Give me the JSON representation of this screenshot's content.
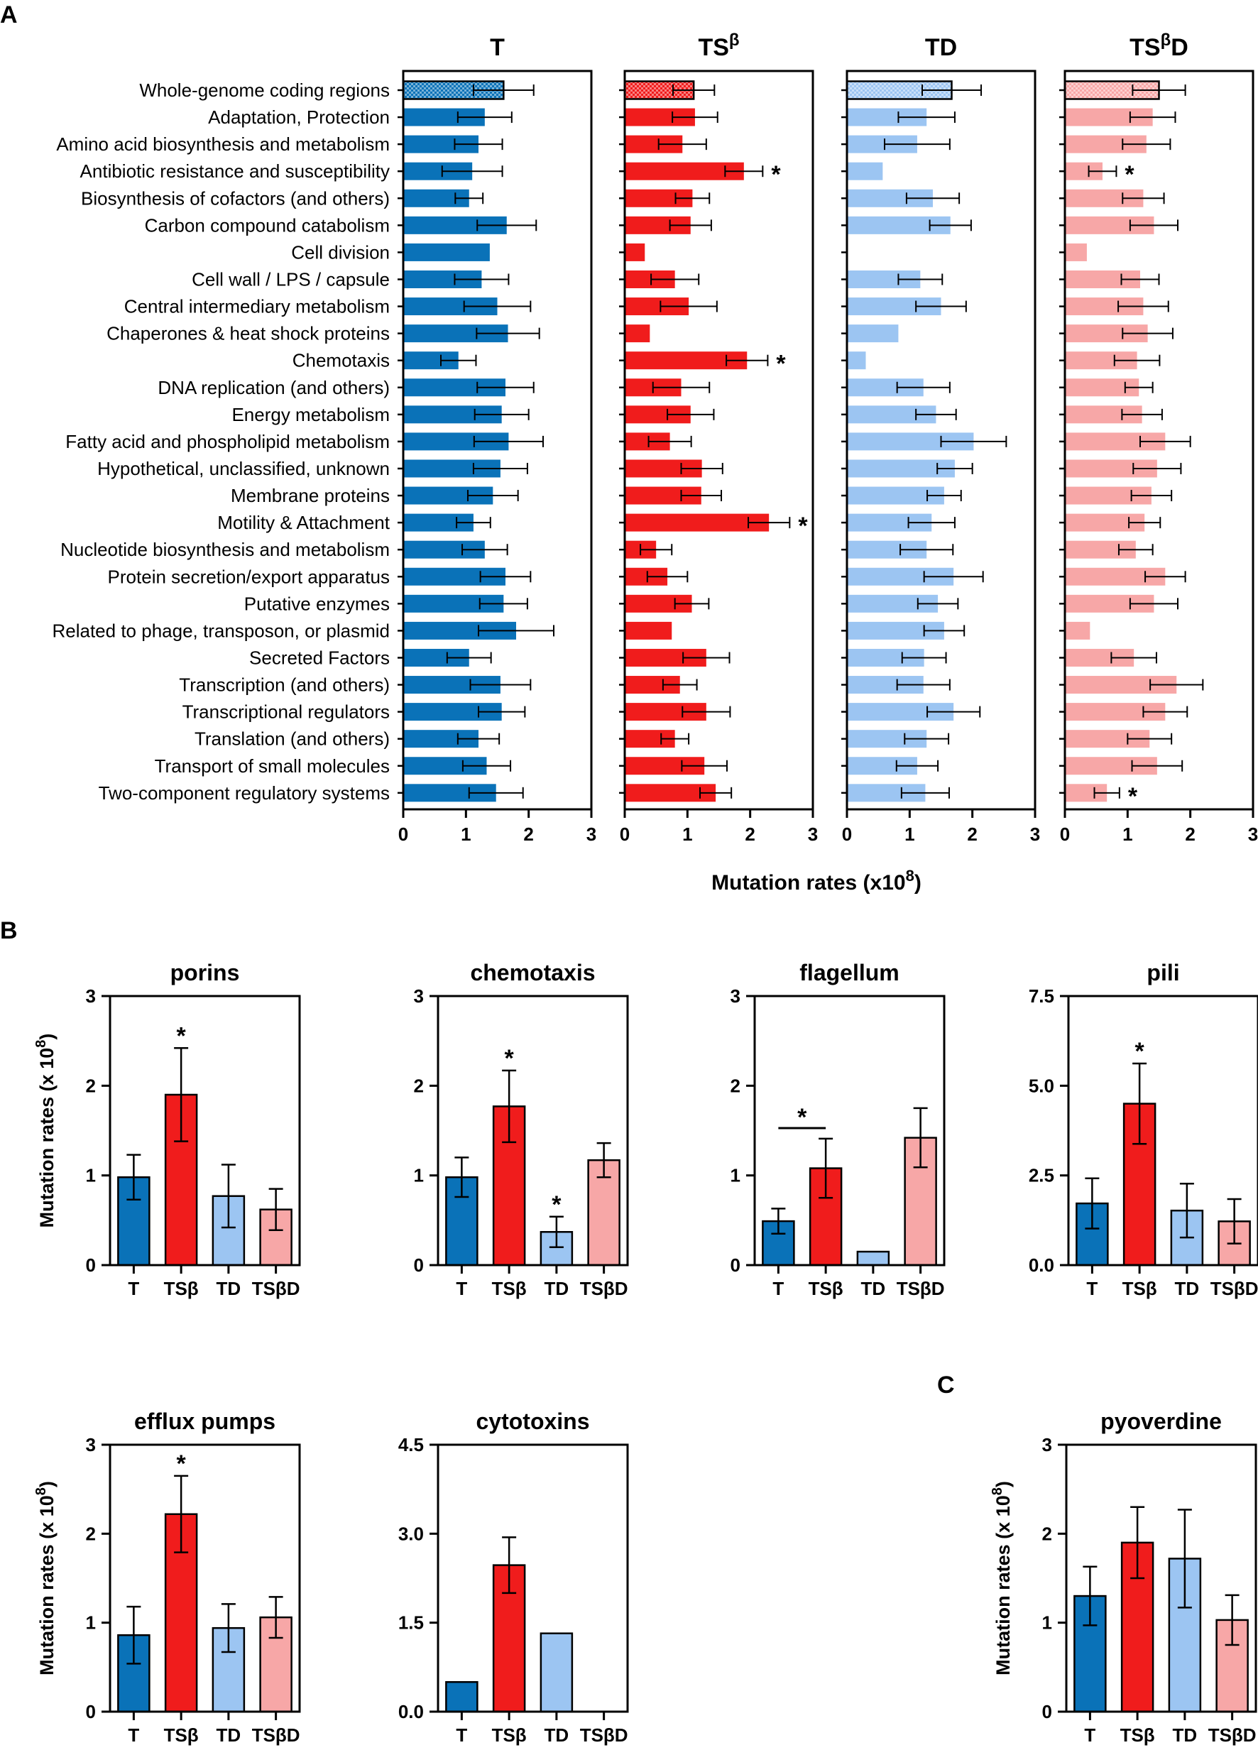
{
  "panel_labels": {
    "a": "A",
    "b": "B",
    "c": "C"
  },
  "colors": {
    "T": "#0a72b8",
    "TSb": "#f01c1c",
    "TD": "#9cc5f2",
    "TSbD": "#f7a7a7"
  },
  "chart_data": [
    {
      "panel": "A",
      "type": "bar",
      "orientation": "horizontal",
      "xlabel": "Mutation rates (x10",
      "xlabel_sup": "8",
      "xlabel_end": ")",
      "xlim": [
        0,
        3
      ],
      "xticks": [
        "0",
        "1",
        "2",
        "3"
      ],
      "categories": [
        "Whole-genome coding regions",
        "Adaptation, Protection",
        "Amino acid biosynthesis and metabolism",
        "Antibiotic resistance and susceptibility",
        "Biosynthesis of cofactors (and others)",
        "Carbon compound catabolism",
        "Cell division",
        "Cell wall / LPS / capsule",
        "Central intermediary metabolism",
        "Chaperones & heat shock proteins",
        "Chemotaxis",
        "DNA replication (and others)",
        "Energy metabolism",
        "Fatty acid and phospholipid metabolism",
        "Hypothetical, unclassified, unknown",
        "Membrane proteins",
        "Motility & Attachment",
        "Nucleotide biosynthesis and metabolism",
        "Protein secretion/export apparatus",
        "Putative enzymes",
        "Related to phage, transposon, or plasmid",
        "Secreted Factors",
        "Transcription (and others)",
        "Transcriptional regulators",
        "Translation (and others)",
        "Transport of small molecules",
        "Two-component regulatory systems"
      ],
      "series": [
        {
          "name": "T",
          "title": "T",
          "title_sup": "",
          "title_end": "",
          "values": [
            1.6,
            1.3,
            1.2,
            1.1,
            1.05,
            1.65,
            1.38,
            1.25,
            1.5,
            1.67,
            0.88,
            1.63,
            1.57,
            1.68,
            1.55,
            1.43,
            1.12,
            1.3,
            1.63,
            1.6,
            1.8,
            1.05,
            1.55,
            1.57,
            1.2,
            1.33,
            1.48
          ],
          "errors": [
            0.48,
            0.43,
            0.38,
            0.48,
            0.22,
            0.47,
            null,
            0.43,
            0.53,
            0.5,
            0.28,
            0.45,
            0.43,
            0.55,
            0.43,
            0.4,
            0.27,
            0.36,
            0.4,
            0.38,
            0.6,
            0.35,
            0.48,
            0.37,
            0.33,
            0.38,
            0.43
          ],
          "significant": []
        },
        {
          "name": "TSβ",
          "title": "TS",
          "title_sup": "β",
          "title_end": "",
          "values": [
            1.1,
            1.12,
            0.92,
            1.9,
            1.08,
            1.05,
            0.32,
            0.8,
            1.02,
            0.4,
            1.95,
            0.9,
            1.05,
            0.72,
            1.23,
            1.22,
            2.3,
            0.5,
            0.68,
            1.07,
            0.75,
            1.3,
            0.88,
            1.3,
            0.8,
            1.27,
            1.45
          ],
          "errors": [
            0.33,
            0.36,
            0.38,
            0.3,
            0.27,
            0.33,
            null,
            0.38,
            0.45,
            null,
            0.33,
            0.45,
            0.37,
            0.34,
            0.33,
            0.32,
            0.33,
            0.25,
            0.32,
            0.27,
            null,
            0.37,
            0.27,
            0.38,
            0.22,
            0.36,
            0.25
          ],
          "significant": [
            3,
            10,
            16
          ]
        },
        {
          "name": "TD",
          "title": "TD",
          "title_sup": "",
          "title_end": "",
          "values": [
            1.67,
            1.27,
            1.12,
            0.57,
            1.37,
            1.65,
            null,
            1.17,
            1.5,
            0.82,
            0.3,
            1.22,
            1.42,
            2.02,
            1.72,
            1.55,
            1.35,
            1.27,
            1.7,
            1.45,
            1.55,
            1.23,
            1.22,
            1.7,
            1.27,
            1.12,
            1.25
          ],
          "errors": [
            0.47,
            0.45,
            0.52,
            null,
            0.42,
            0.33,
            null,
            0.35,
            0.4,
            null,
            null,
            0.42,
            0.32,
            0.52,
            0.28,
            0.27,
            0.37,
            0.42,
            0.47,
            0.32,
            0.32,
            0.35,
            0.42,
            0.42,
            0.35,
            0.33,
            0.38
          ],
          "significant": []
        },
        {
          "name": "TSβD",
          "title": "TS",
          "title_sup": "β",
          "title_end": "D",
          "values": [
            1.5,
            1.4,
            1.3,
            0.6,
            1.25,
            1.42,
            0.35,
            1.2,
            1.25,
            1.32,
            1.15,
            1.18,
            1.23,
            1.6,
            1.47,
            1.38,
            1.27,
            1.13,
            1.6,
            1.42,
            0.4,
            1.1,
            1.78,
            1.6,
            1.35,
            1.47,
            0.67
          ],
          "errors": [
            0.42,
            0.36,
            0.38,
            0.22,
            0.33,
            0.38,
            null,
            0.3,
            0.4,
            0.4,
            0.36,
            0.22,
            0.32,
            0.4,
            0.38,
            0.32,
            0.25,
            0.27,
            0.32,
            0.38,
            null,
            0.36,
            0.42,
            0.35,
            0.35,
            0.4,
            0.2
          ],
          "significant": [
            3,
            26
          ]
        }
      ]
    },
    {
      "panel": "B",
      "type": "bar",
      "title": "porins",
      "ylabel": "Mutation rates (x 10",
      "ylabel_sup": "8",
      "ylabel_end": ")",
      "ylim": [
        0,
        3
      ],
      "yticks": [
        "0",
        "1",
        "2",
        "3"
      ],
      "categories": [
        "T",
        "TSβ",
        "TD",
        "TSβD"
      ],
      "values": [
        0.98,
        1.9,
        0.77,
        0.62
      ],
      "errors": [
        0.25,
        0.52,
        0.35,
        0.23
      ],
      "significant": [
        1
      ]
    },
    {
      "panel": "B",
      "type": "bar",
      "title": "chemotaxis",
      "ylim": [
        0,
        3
      ],
      "yticks": [
        "0",
        "1",
        "2",
        "3"
      ],
      "categories": [
        "T",
        "TSβ",
        "TD",
        "TSβD"
      ],
      "values": [
        0.98,
        1.77,
        0.37,
        1.17
      ],
      "errors": [
        0.22,
        0.4,
        0.17,
        0.19
      ],
      "significant": [
        1,
        2
      ]
    },
    {
      "panel": "B",
      "type": "bar",
      "title": "flagellum",
      "ylim": [
        0,
        3
      ],
      "yticks": [
        "0",
        "1",
        "2",
        "3"
      ],
      "categories": [
        "T",
        "TSβ",
        "TD",
        "TSβD"
      ],
      "values": [
        0.49,
        1.08,
        0.15,
        1.42
      ],
      "errors": [
        0.14,
        0.33,
        null,
        0.33
      ],
      "significant": [],
      "bracket": [
        0,
        1
      ]
    },
    {
      "panel": "B",
      "type": "bar",
      "title": "pili",
      "ylabel": "",
      "ylim": [
        0,
        7.5
      ],
      "yticks": [
        "0.0",
        "2.5",
        "5.0",
        "7.5"
      ],
      "categories": [
        "T",
        "TSβ",
        "TD",
        "TSβD"
      ],
      "values": [
        1.72,
        4.5,
        1.52,
        1.22
      ],
      "errors": [
        0.7,
        1.12,
        0.75,
        0.62
      ],
      "significant": [
        1
      ]
    },
    {
      "panel": "B",
      "type": "bar",
      "title": "efflux pumps",
      "ylabel": "Mutation rates (x 10",
      "ylabel_sup": "8",
      "ylabel_end": ")",
      "ylim": [
        0,
        3
      ],
      "yticks": [
        "0",
        "1",
        "2",
        "3"
      ],
      "categories": [
        "T",
        "TSβ",
        "TD",
        "TSβD"
      ],
      "values": [
        0.86,
        2.22,
        0.94,
        1.06
      ],
      "errors": [
        0.32,
        0.43,
        0.27,
        0.23
      ],
      "significant": [
        1
      ]
    },
    {
      "panel": "B",
      "type": "bar",
      "title": "cytotoxins",
      "ylim": [
        0,
        4.5
      ],
      "yticks": [
        "0.0",
        "1.5",
        "3.0",
        "4.5"
      ],
      "categories": [
        "T",
        "TSβ",
        "TD",
        "TSβD"
      ],
      "values": [
        0.5,
        2.47,
        1.32,
        null
      ],
      "errors": [
        null,
        0.47,
        null,
        null
      ],
      "significant": []
    },
    {
      "panel": "C",
      "type": "bar",
      "title": "pyoverdine",
      "ylabel": "Mutation rates (x 10",
      "ylabel_sup": "8",
      "ylabel_end": ")",
      "ylim": [
        0,
        3
      ],
      "yticks": [
        "0",
        "1",
        "2",
        "3"
      ],
      "categories": [
        "T",
        "TSβ",
        "TD",
        "TSβD"
      ],
      "values": [
        1.3,
        1.9,
        1.72,
        1.03
      ],
      "errors": [
        0.33,
        0.4,
        0.55,
        0.28
      ],
      "significant": []
    }
  ]
}
